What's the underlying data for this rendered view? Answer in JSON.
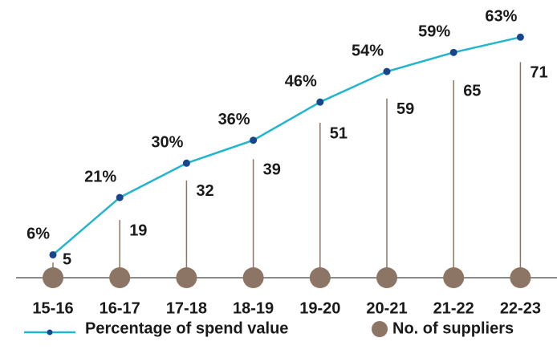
{
  "chart_data": {
    "type": "combo",
    "categories": [
      "15-16",
      "16-17",
      "17-18",
      "18-19",
      "19-20",
      "20-21",
      "21-22",
      "22-23"
    ],
    "series": [
      {
        "name": "Percentage of spend value",
        "type": "line",
        "color": "#22b5cf",
        "marker_color": "#17468a",
        "values": [
          6,
          21,
          30,
          36,
          46,
          54,
          59,
          63
        ],
        "value_labels": [
          "6%",
          "21%",
          "30%",
          "36%",
          "46%",
          "54%",
          "59%",
          "63%"
        ]
      },
      {
        "name": "No. of suppliers",
        "type": "lollipop",
        "axis": "y2",
        "color": "#8c7565",
        "values": [
          5,
          19,
          32,
          39,
          51,
          59,
          65,
          71
        ]
      }
    ],
    "ylim": [
      0,
      70
    ],
    "y2lim": [
      0,
      88
    ],
    "legend": "bottom"
  }
}
